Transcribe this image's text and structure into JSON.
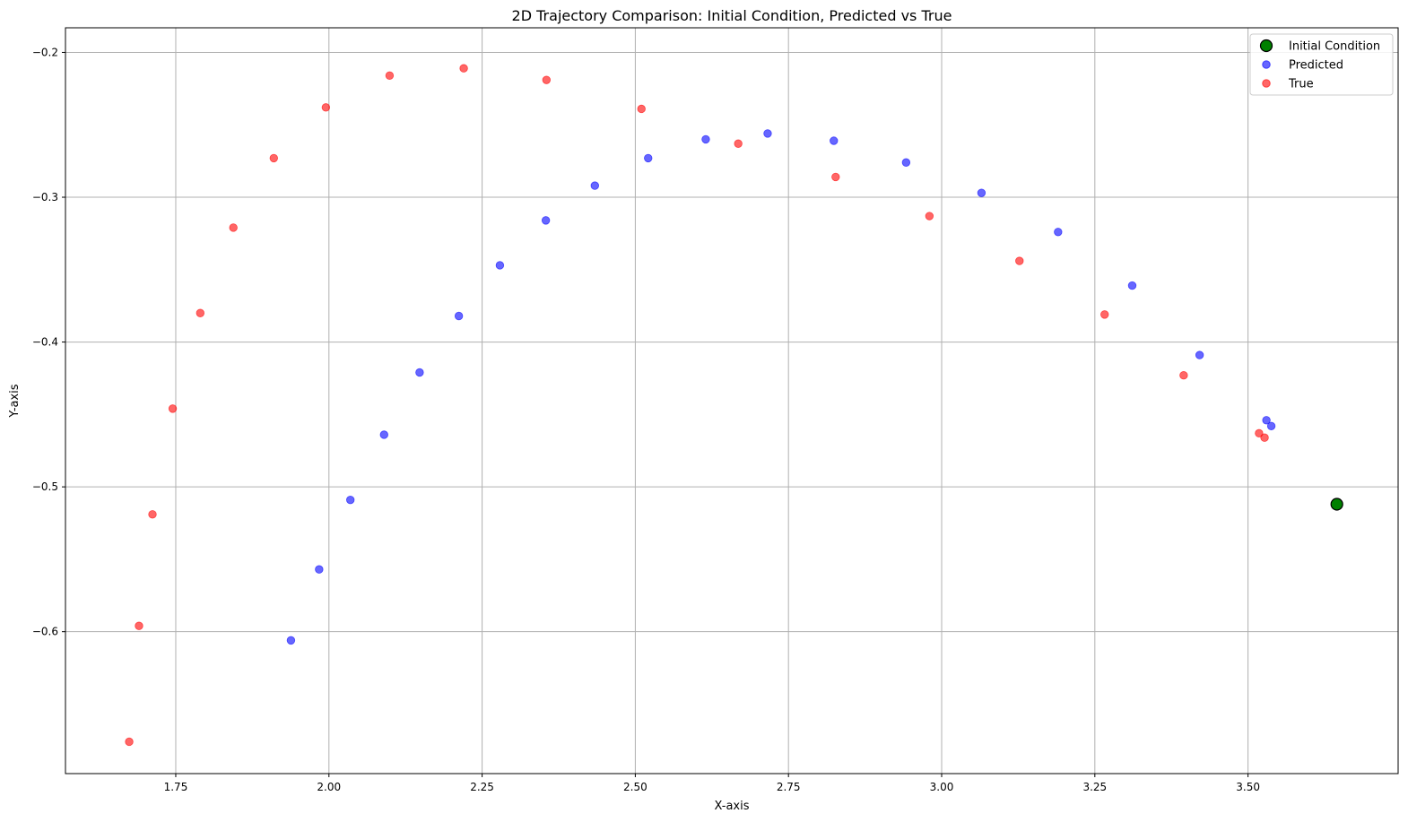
{
  "chart_data": {
    "type": "scatter",
    "title": "2D Trajectory Comparison: Initial Condition, Predicted vs True",
    "xlabel": "X-axis",
    "ylabel": "Y-axis",
    "xlim": [
      1.57,
      3.745
    ],
    "ylim": [
      -0.698,
      -0.183
    ],
    "xticks": [
      1.75,
      2.0,
      2.25,
      2.5,
      2.75,
      3.0,
      3.25,
      3.5
    ],
    "xtick_labels": [
      "1.75",
      "2.00",
      "2.25",
      "2.50",
      "2.75",
      "3.00",
      "3.25",
      "3.50"
    ],
    "yticks": [
      -0.2,
      -0.3,
      -0.4,
      -0.5,
      -0.6
    ],
    "ytick_labels": [
      "−0.2",
      "−0.3",
      "−0.4",
      "−0.5",
      "−0.6"
    ],
    "grid": true,
    "legend_position": "top-right",
    "series": [
      {
        "name": "Initial Condition",
        "color": "#008000",
        "points": [
          [
            3.645,
            -0.512
          ]
        ]
      },
      {
        "name": "Predicted",
        "color": "#0000ff",
        "points": [
          [
            1.938,
            -0.606
          ],
          [
            1.984,
            -0.557
          ],
          [
            2.035,
            -0.509
          ],
          [
            2.09,
            -0.464
          ],
          [
            2.148,
            -0.421
          ],
          [
            2.212,
            -0.382
          ],
          [
            2.279,
            -0.347
          ],
          [
            2.354,
            -0.316
          ],
          [
            2.434,
            -0.292
          ],
          [
            2.521,
            -0.273
          ],
          [
            2.615,
            -0.26
          ],
          [
            2.716,
            -0.256
          ],
          [
            2.824,
            -0.261
          ],
          [
            2.942,
            -0.276
          ],
          [
            3.065,
            -0.297
          ],
          [
            3.19,
            -0.324
          ],
          [
            3.311,
            -0.361
          ],
          [
            3.421,
            -0.409
          ],
          [
            3.53,
            -0.454
          ],
          [
            3.538,
            -0.458
          ]
        ]
      },
      {
        "name": "True",
        "color": "#ff0000",
        "points": [
          [
            1.674,
            -0.676
          ],
          [
            1.69,
            -0.596
          ],
          [
            1.712,
            -0.519
          ],
          [
            1.745,
            -0.446
          ],
          [
            1.79,
            -0.38
          ],
          [
            1.844,
            -0.321
          ],
          [
            1.91,
            -0.273
          ],
          [
            1.995,
            -0.238
          ],
          [
            2.099,
            -0.216
          ],
          [
            2.22,
            -0.211
          ],
          [
            2.355,
            -0.219
          ],
          [
            2.51,
            -0.239
          ],
          [
            2.668,
            -0.263
          ],
          [
            2.827,
            -0.286
          ],
          [
            2.98,
            -0.313
          ],
          [
            3.127,
            -0.344
          ],
          [
            3.266,
            -0.381
          ],
          [
            3.395,
            -0.423
          ],
          [
            3.518,
            -0.463
          ],
          [
            3.527,
            -0.466
          ]
        ]
      }
    ]
  }
}
